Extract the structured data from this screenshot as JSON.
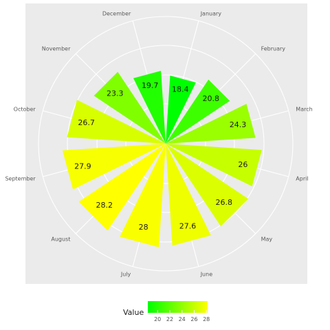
{
  "chart_data": {
    "type": "bar",
    "coordinate_system": "polar",
    "categories": [
      "January",
      "February",
      "March",
      "April",
      "May",
      "June",
      "July",
      "August",
      "September",
      "October",
      "November",
      "December"
    ],
    "values": [
      18.4,
      20.8,
      24.3,
      26,
      26.8,
      27.6,
      28,
      28.2,
      27.9,
      26.7,
      23.3,
      19.7
    ],
    "data_labels": [
      "18.4",
      "20.8",
      "24.3",
      "26",
      "26.8",
      "27.6",
      "28",
      "28.2",
      "27.9",
      "26.7",
      "23.3",
      "19.7"
    ],
    "title": "",
    "grid": true,
    "color_scale": {
      "low_color": "#00ff00",
      "high_color": "#ffff00",
      "domain": [
        18.4,
        28.2
      ]
    },
    "legend": {
      "title": "Value",
      "placement": "bottom",
      "ticks": [
        20,
        22,
        24,
        26,
        28
      ],
      "tick_labels": [
        "20",
        "22",
        "24",
        "26",
        "28"
      ]
    },
    "colors": {
      "panel_background": "#ebebeb",
      "grid_line": "#ffffff",
      "label_text": "#5a5a5a"
    }
  }
}
